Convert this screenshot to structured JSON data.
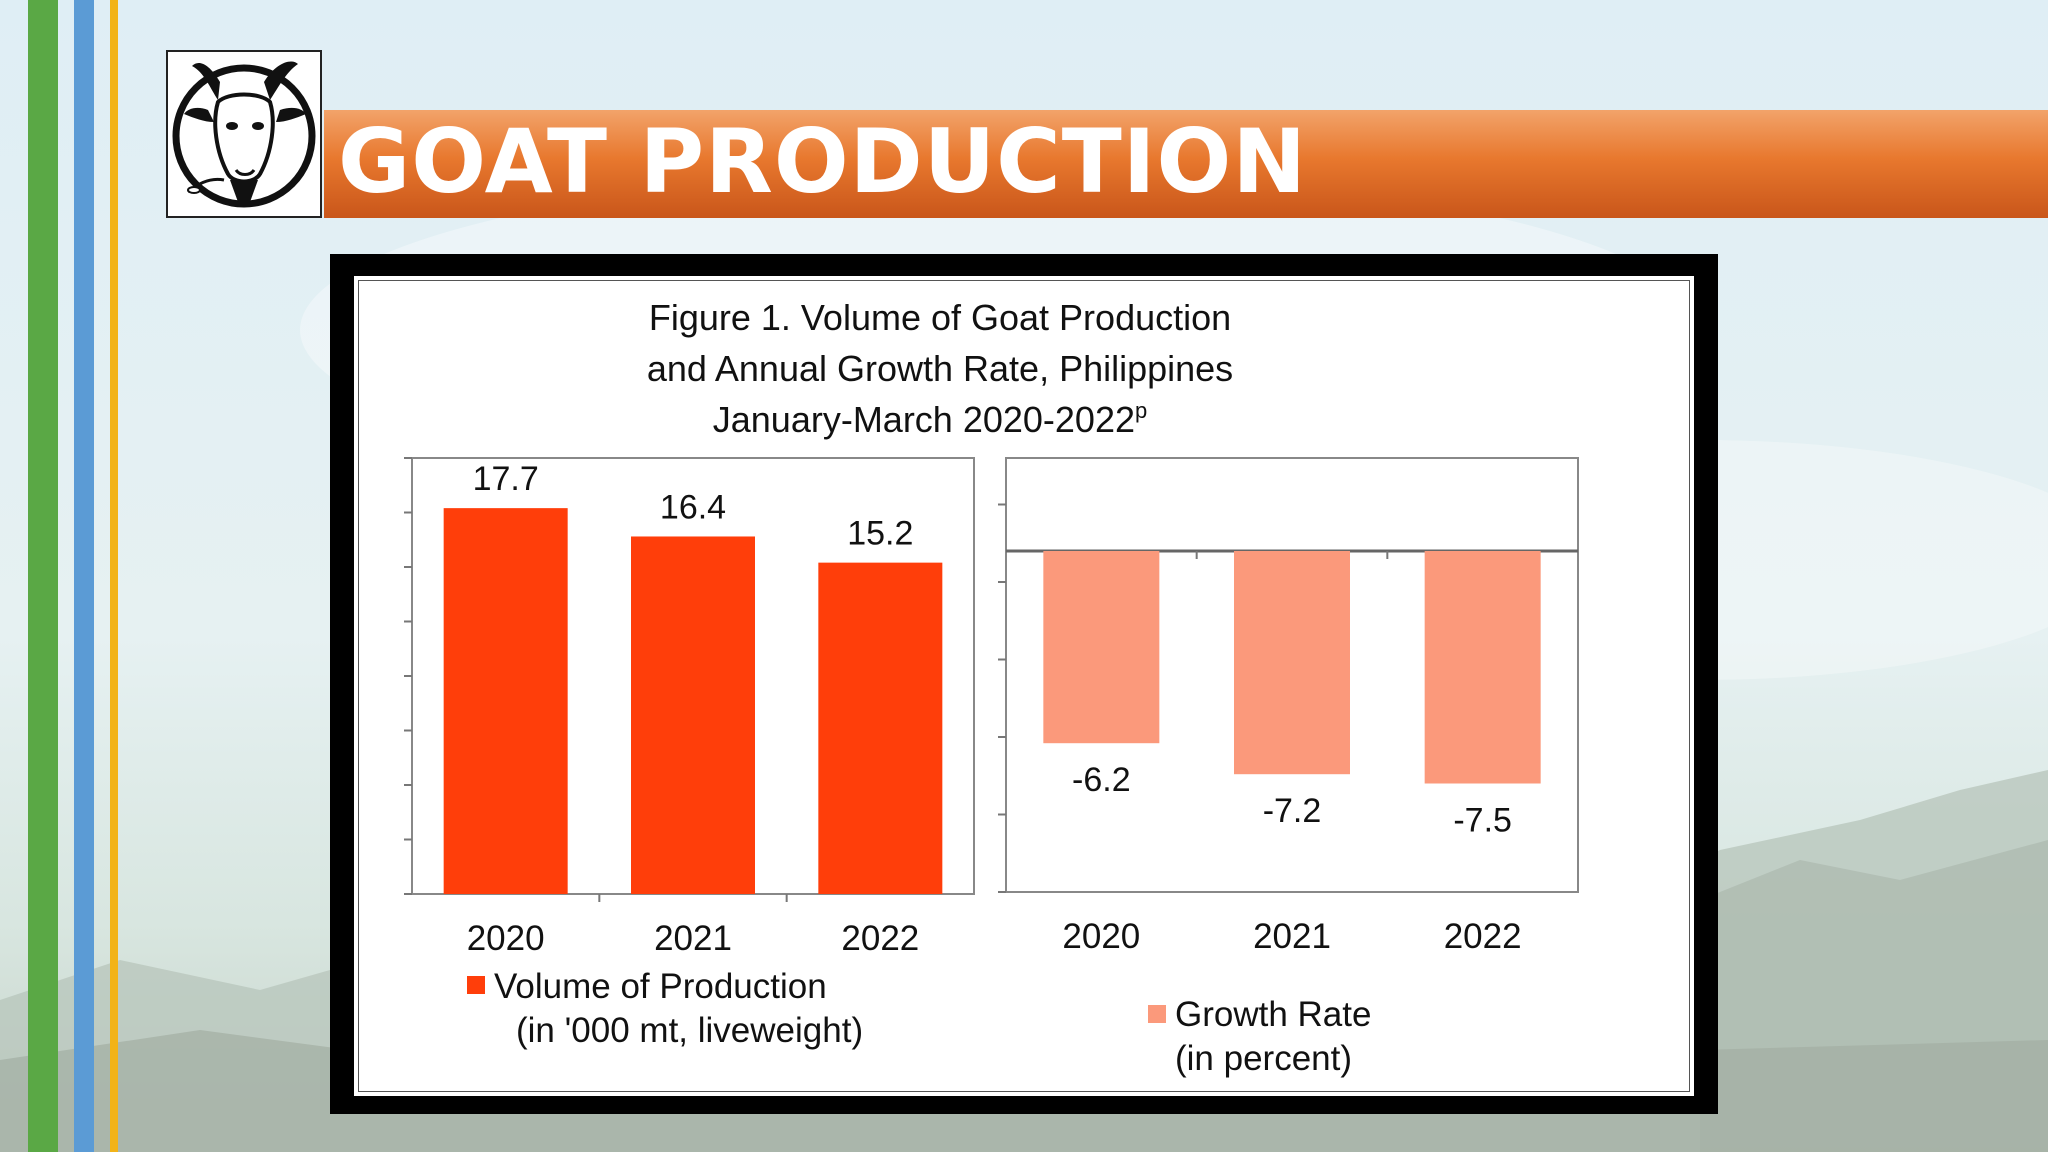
{
  "slide": {
    "title": "GOAT PRODUCTION",
    "colors": {
      "title_band": "#e8782e",
      "accent_green": "#5aa845",
      "accent_blue": "#5b9bd5",
      "accent_yellow": "#f2b318"
    },
    "logo_icon": "goat-head-icon"
  },
  "chart_data": [
    {
      "type": "bar",
      "title": "Figure 1. Volume of Goat Production\nand Annual Growth Rate, Philippines\nJanuary-March 2020-2022",
      "title_lines": [
        "Figure 1. Volume of Goat Production",
        "and Annual Growth Rate, Philippines",
        "January-March 2020-2022"
      ],
      "title_superscript": "p",
      "categories": [
        "2020",
        "2021",
        "2022"
      ],
      "series": [
        {
          "name": "Volume of Production (in '000 mt, liveweight)",
          "legend_lines": [
            "Volume of Production",
            "(in '000 mt, liveweight)"
          ],
          "values": [
            17.7,
            16.4,
            15.2
          ],
          "data_labels": [
            "17.7",
            "16.4",
            "15.2"
          ],
          "color": "#ff3e0a"
        }
      ],
      "ylim": [
        0,
        20
      ],
      "grid": false,
      "legend": "bottom"
    },
    {
      "type": "bar",
      "categories": [
        "2020",
        "2021",
        "2022"
      ],
      "series": [
        {
          "name": "Growth Rate (in percent)",
          "legend_lines": [
            "Growth Rate",
            "(in percent)"
          ],
          "values": [
            -6.2,
            -7.2,
            -7.5
          ],
          "data_labels": [
            "-6.2",
            "-7.2",
            "-7.5"
          ],
          "color": "#fb997b"
        }
      ],
      "ylim": [
        -11,
        3
      ],
      "grid": false,
      "legend": "bottom"
    }
  ]
}
